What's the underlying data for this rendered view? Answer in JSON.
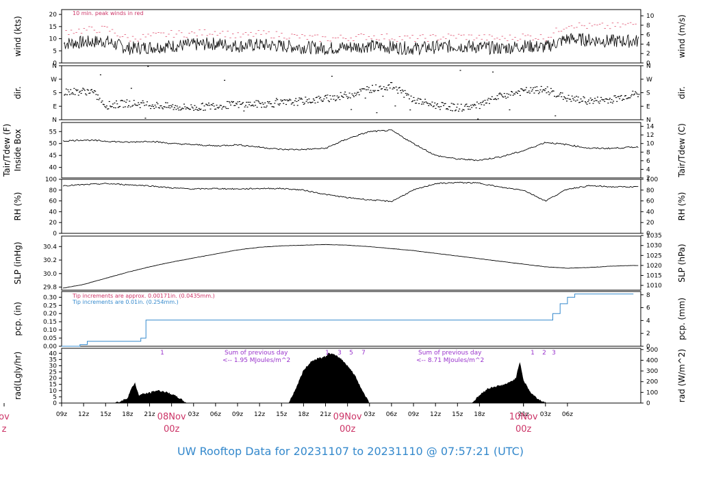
{
  "footer": {
    "prefix": "UW Rooftop Data for",
    "start": "20231107",
    "to": "to",
    "end": "20231110",
    "at": "@",
    "time": "07:57:21",
    "zone": "(UTC)"
  },
  "chart_data": {
    "type": "line",
    "time_axis": {
      "tick_labels": [
        "09z",
        "12z",
        "15z",
        "18z",
        "21z",
        "03z",
        "06z",
        "09z",
        "12z",
        "15z",
        "18z",
        "21z",
        "03z",
        "06z",
        "09z",
        "12z",
        "15z",
        "18z",
        "21z",
        "03z",
        "06z"
      ],
      "day_labels": [
        {
          "day": "ov",
          "hour": "z"
        },
        {
          "day": "08Nov",
          "hour": "00z"
        },
        {
          "day": "09Nov",
          "hour": "00z"
        },
        {
          "day": "10Nov",
          "hour": "00z"
        }
      ]
    },
    "panels": [
      {
        "id": "wind",
        "ylabel_left": "wind (kts)",
        "ylabel_right": "wind (m/s)",
        "left_ticks": [
          "0",
          "5",
          "10",
          "15",
          "20"
        ],
        "right_ticks": [
          "0",
          "2",
          "4",
          "6",
          "8",
          "10"
        ],
        "ylim": [
          0,
          22
        ],
        "note": "10 min. peak winds in red",
        "series": [
          {
            "name": "wind",
            "x": [
              0,
              6,
              9,
              12,
              15,
              18,
              21,
              24,
              27,
              30,
              33,
              36,
              39,
              42,
              45,
              48,
              51,
              54,
              57,
              60,
              63,
              66,
              69,
              72,
              75,
              78
            ],
            "values": [
              8,
              9,
              6,
              6.5,
              7,
              7.5,
              8,
              7,
              7.5,
              7,
              6.5,
              6,
              6.5,
              7,
              6.5,
              6,
              6.5,
              7,
              6.5,
              6,
              7,
              6.5,
              10,
              9.5,
              9,
              9
            ]
          },
          {
            "name": "peak",
            "x": [
              0,
              6,
              9,
              12,
              15,
              18,
              21,
              24,
              27,
              30,
              33,
              36,
              39,
              42,
              45,
              48,
              51,
              54,
              57,
              60,
              63,
              66,
              69,
              72,
              75,
              78
            ],
            "values": [
              13,
              14,
              10,
              11,
              12,
              12,
              13,
              11,
              12,
              11.5,
              10.5,
              10,
              10.5,
              11,
              10.5,
              10,
              10.5,
              11,
              10.5,
              10,
              11,
              10.5,
              16,
              15,
              15,
              16
            ]
          }
        ]
      },
      {
        "id": "dir",
        "ylabel_left": "dir.",
        "ylabel_right": "dir.",
        "left_ticks": [
          "N",
          "E",
          "S",
          "W",
          "N"
        ],
        "right_ticks": [
          "N",
          "E",
          "S",
          "W",
          "N"
        ],
        "ylim": [
          0,
          360
        ],
        "series": [
          {
            "name": "direction",
            "x": [
              0,
              4,
              6,
              9,
              12,
              15,
              18,
              21,
              24,
              27,
              30,
              33,
              36,
              39,
              42,
              45,
              48,
              51,
              54,
              57,
              60,
              63,
              66,
              69,
              72,
              75,
              78
            ],
            "values": [
              185,
              190,
              95,
              110,
              100,
              85,
              80,
              95,
              100,
              105,
              110,
              125,
              140,
              165,
              205,
              225,
              130,
              95,
              80,
              95,
              160,
              190,
              200,
              140,
              125,
              135,
              170
            ]
          }
        ]
      },
      {
        "id": "temp",
        "ylabel_left": "Tair/Tdew (F) Inside Box",
        "ylabel_right": "Tair/Tdew (C)",
        "left_ticks": [
          "40",
          "45",
          "50",
          "55"
        ],
        "right_ticks": [
          "2",
          "4",
          "6",
          "8",
          "10",
          "12",
          "14"
        ],
        "ylim": [
          35.6,
          58.8
        ],
        "series": [
          {
            "name": "Tair",
            "x": [
              0,
              3,
              6,
              9,
              12,
              15,
              18,
              21,
              24,
              27,
              30,
              33,
              36,
              39,
              42,
              45,
              48,
              51,
              54,
              57,
              60,
              63,
              66,
              69,
              72,
              75,
              78
            ],
            "values": [
              51,
              51.5,
              51,
              50.5,
              51,
              50,
              49.5,
              49,
              49.5,
              48.5,
              47.5,
              47.5,
              48,
              52,
              55,
              55.5,
              50,
              45,
              43.5,
              43,
              44.5,
              47,
              50.5,
              49.5,
              48,
              48,
              48.5
            ]
          }
        ]
      },
      {
        "id": "rh",
        "ylabel_left": "RH (%)",
        "ylabel_right": "RH (%)",
        "left_ticks": [
          "0",
          "20",
          "40",
          "60",
          "80",
          "100"
        ],
        "right_ticks": [
          "0",
          "20",
          "40",
          "60",
          "80",
          "100"
        ],
        "ylim": [
          0,
          100
        ],
        "series": [
          {
            "name": "RH",
            "x": [
              0,
              3,
              6,
              9,
              12,
              15,
              18,
              21,
              24,
              27,
              30,
              33,
              36,
              39,
              42,
              45,
              48,
              51,
              54,
              57,
              60,
              63,
              66,
              69,
              72,
              75,
              78
            ],
            "values": [
              88,
              90,
              92,
              90,
              88,
              84,
              82,
              83,
              82,
              83,
              83,
              80,
              72,
              66,
              62,
              59,
              80,
              92,
              94,
              93,
              85,
              80,
              60,
              82,
              88,
              86,
              86
            ]
          }
        ]
      },
      {
        "id": "slp",
        "ylabel_left": "SLP (inHg)",
        "ylabel_right": "SLP (hPa)",
        "left_ticks": [
          "29.8",
          "30.0",
          "30.2",
          "30.4"
        ],
        "right_ticks": [
          "1010",
          "1015",
          "1020",
          "1025",
          "1030",
          "1035"
        ],
        "ylim": [
          29.755,
          30.555
        ],
        "series": [
          {
            "name": "SLP",
            "x": [
              0,
              3,
              6,
              9,
              12,
              15,
              18,
              21,
              24,
              27,
              30,
              33,
              36,
              39,
              42,
              45,
              48,
              51,
              54,
              57,
              60,
              63,
              66,
              69,
              72,
              75,
              78
            ],
            "values": [
              29.78,
              29.84,
              29.93,
              30.02,
              30.1,
              30.17,
              30.23,
              30.29,
              30.35,
              30.39,
              30.41,
              30.42,
              30.43,
              30.42,
              30.4,
              30.37,
              30.34,
              30.3,
              30.26,
              30.22,
              30.18,
              30.14,
              30.1,
              30.08,
              30.09,
              30.11,
              30.12
            ]
          }
        ]
      },
      {
        "id": "pcp",
        "ylabel_left": "pcp. (in)",
        "ylabel_right": "pcp. (mm)",
        "left_ticks": [
          "0.00",
          "0.05",
          "0.10",
          "0.15",
          "0.20",
          "0.25",
          "0.30"
        ],
        "right_ticks": [
          "0",
          "2",
          "4",
          "6",
          "8"
        ],
        "ylim": [
          0,
          0.335
        ],
        "notes": [
          {
            "text": "Tip increments are approx. 0.00171in. (0.0435mm.)",
            "color": "#cc3366"
          },
          {
            "text": "Tip increments are 0.01in. (0.254mm.)",
            "color": "#3388cc"
          }
        ],
        "series": [
          {
            "name": "pcp_steps",
            "x": [
              0,
              2.5,
              3.5,
              10.8,
              11.5,
              66,
              67,
              68,
              69,
              70,
              78
            ],
            "values": [
              0,
              0.01,
              0.03,
              0.05,
              0.16,
              0.16,
              0.2,
              0.26,
              0.3,
              0.32,
              0.32
            ]
          }
        ]
      },
      {
        "id": "rad",
        "ylabel_left": "rad(Lgly/hr)",
        "ylabel_right": "rad (W/m^2)",
        "left_ticks": [
          "0",
          "5",
          "10",
          "15",
          "20",
          "25",
          "30",
          "35",
          "40"
        ],
        "right_ticks": [
          "0",
          "100",
          "200",
          "300",
          "400",
          "500"
        ],
        "ylim": [
          0,
          44
        ],
        "notes": [
          {
            "text": "Sum of previous day",
            "sub": "<-- 1.95 MJoules/m^2"
          },
          {
            "text": "Sum of previous day",
            "sub": "<-- 8.71 MJoules/m^2"
          }
        ],
        "top_marks": [
          "1",
          "1",
          "3",
          "5",
          "7",
          "1",
          "2",
          "3"
        ],
        "series": [
          {
            "name": "day1",
            "x": [
              7,
              8,
              9,
              9.5,
              10,
              10.5,
              11,
              12,
              13,
              14,
              15,
              16,
              17
            ],
            "values": [
              0,
              1,
              4,
              11,
              16,
              6,
              7,
              8,
              10,
              9,
              7,
              4,
              0
            ]
          },
          {
            "name": "day2",
            "x": [
              31,
              32,
              33,
              34,
              35,
              36,
              36.5,
              37,
              38,
              39,
              40,
              41,
              42
            ],
            "values": [
              0,
              12,
              26,
              33,
              36,
              37,
              40,
              39,
              36,
              30,
              22,
              10,
              0
            ]
          },
          {
            "name": "day3",
            "x": [
              56,
              57,
              58,
              59,
              60,
              61,
              62,
              62.5,
              63,
              64,
              65,
              66
            ],
            "values": [
              0,
              6,
              11,
              13,
              14,
              16,
              20,
              33,
              18,
              8,
              3,
              0
            ]
          }
        ]
      }
    ]
  }
}
